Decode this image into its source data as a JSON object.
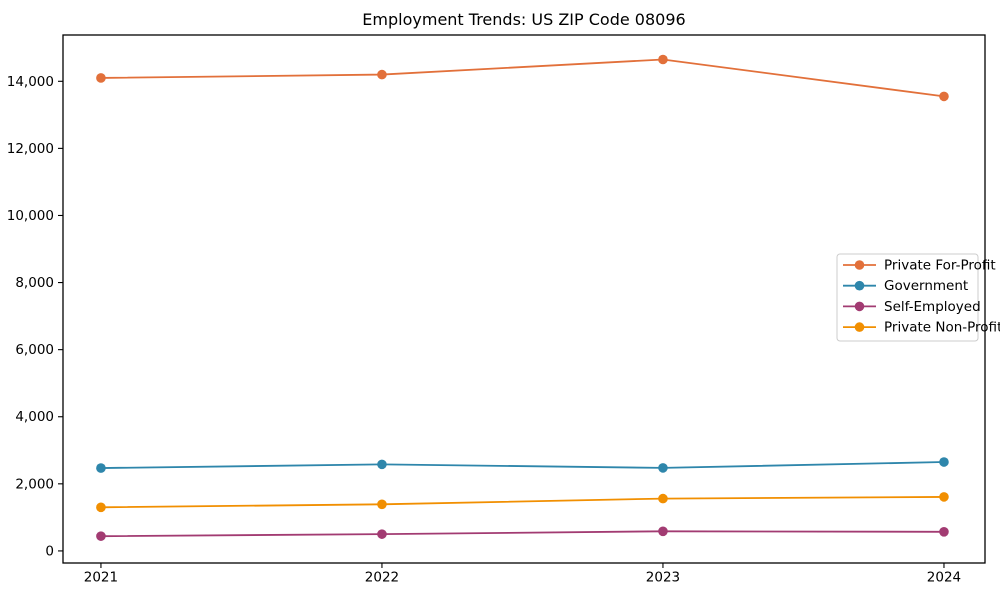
{
  "chart_data": {
    "type": "line",
    "title": "Employment Trends: US ZIP Code 08096",
    "xlabel": "",
    "ylabel": "",
    "grid": false,
    "legend_position": "center right",
    "x": [
      2021,
      2022,
      2023,
      2024
    ],
    "x_tick_labels": [
      "2021",
      "2022",
      "2023",
      "2024"
    ],
    "y_ticks": [
      0,
      2000,
      4000,
      6000,
      8000,
      10000,
      12000,
      14000
    ],
    "y_tick_labels": [
      "0",
      "2,000",
      "4,000",
      "6,000",
      "8,000",
      "10,000",
      "12,000",
      "14,000"
    ],
    "xlim": [
      2020.865,
      2024.146
    ],
    "ylim": [
      -360,
      15380
    ],
    "series": [
      {
        "name": "Private For-Profit",
        "color": "#E2703A",
        "values": [
          14100,
          14200,
          14650,
          13550
        ]
      },
      {
        "name": "Government",
        "color": "#2E86AB",
        "values": [
          2470,
          2580,
          2475,
          2650
        ]
      },
      {
        "name": "Self-Employed",
        "color": "#A23B72",
        "values": [
          440,
          500,
          585,
          570
        ]
      },
      {
        "name": "Private Non-Profit",
        "color": "#F18F01",
        "values": [
          1300,
          1390,
          1560,
          1610
        ]
      }
    ]
  }
}
